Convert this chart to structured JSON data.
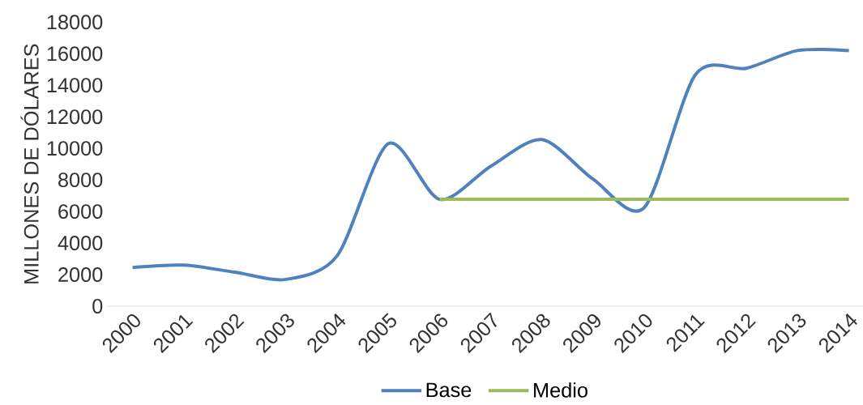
{
  "chart_data": {
    "type": "line",
    "ylabel": "MILLONES DE DÓLARES",
    "categories": [
      "2000",
      "2001",
      "2002",
      "2003",
      "2004",
      "2005",
      "2006",
      "2007",
      "2008",
      "2009",
      "2010",
      "2011",
      "2012",
      "2013",
      "2014"
    ],
    "series": [
      {
        "name": "Base",
        "color": "#4f81bd",
        "values": [
          2450,
          2600,
          2150,
          1700,
          3200,
          10300,
          6770,
          8870,
          10560,
          8050,
          6250,
          14670,
          15080,
          16200,
          16200
        ]
      },
      {
        "name": "Medio",
        "color": "#9bbb59",
        "values": [
          null,
          null,
          null,
          null,
          null,
          null,
          6770,
          6770,
          6770,
          6770,
          6770,
          6770,
          6770,
          6770,
          6770
        ]
      }
    ],
    "ylim": [
      0,
      18000
    ],
    "yticks": [
      0,
      2000,
      4000,
      6000,
      8000,
      10000,
      12000,
      14000,
      16000,
      18000
    ],
    "legend": "bottom",
    "marker": "none",
    "line_style": "solid",
    "grid": false
  }
}
